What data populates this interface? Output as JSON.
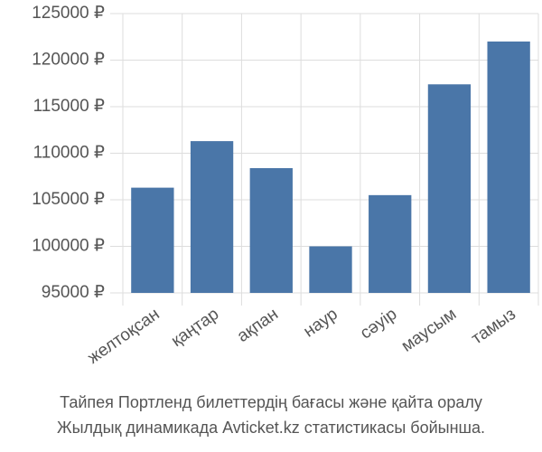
{
  "chart_data": {
    "type": "bar",
    "categories": [
      "желтоқсан",
      "қаңтар",
      "ақпан",
      "наур",
      "сәуір",
      "маусым",
      "тамыз"
    ],
    "values": [
      106300,
      111300,
      108400,
      100000,
      105500,
      117400,
      122000
    ],
    "color": "#4a76a8",
    "ylim": [
      95000,
      125000
    ],
    "yticks": [
      {
        "value": 95000,
        "label": "95000 ₽"
      },
      {
        "value": 100000,
        "label": "100000 ₽"
      },
      {
        "value": 105000,
        "label": "105000 ₽"
      },
      {
        "value": 110000,
        "label": "110000 ₽"
      },
      {
        "value": 115000,
        "label": "115000 ₽"
      },
      {
        "value": 120000,
        "label": "120000 ₽"
      },
      {
        "value": 125000,
        "label": "125000 ₽"
      }
    ],
    "grid": true,
    "caption": [
      "Тайпея Портленд билеттердің бағасы және қайта оралу",
      "Жылдық динамикада Avticket.kz статистикасы бойынша."
    ]
  }
}
